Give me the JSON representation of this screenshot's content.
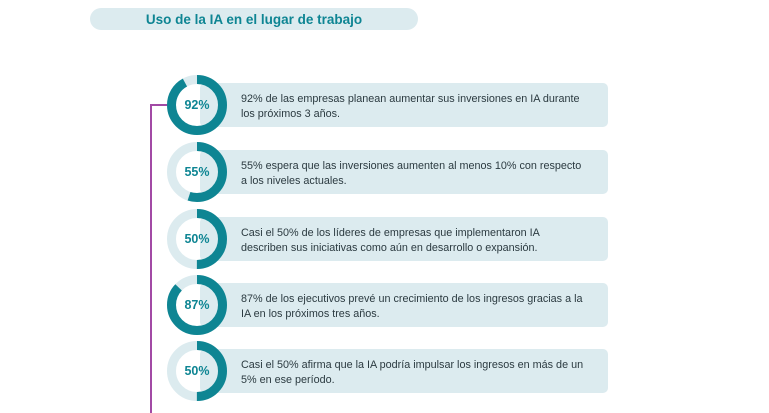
{
  "title": "Uso de la IA en el lugar de trabajo",
  "colors": {
    "accent": "#0e8593",
    "track": "#dcebef",
    "card": "#dcebef",
    "line": "#a24aa5"
  },
  "items": [
    {
      "label": "92%",
      "percent": 92,
      "text": "92% de las empresas planean aumentar sus inversiones en IA durante los próximos 3 años."
    },
    {
      "label": "55%",
      "percent": 55,
      "text": "55% espera que las inversiones aumenten al menos 10% con respecto a los niveles actuales."
    },
    {
      "label": "50%",
      "percent": 50,
      "text": "Casi el 50% de los líderes de empresas que implementaron IA describen sus iniciativas como aún en desarrollo o expansión."
    },
    {
      "label": "87%",
      "percent": 87,
      "text": "87% de los ejecutivos prevé un crecimiento de los ingresos gracias a la IA en los próximos tres años."
    },
    {
      "label": "50%",
      "percent": 50,
      "text": "Casi el 50% afirma que la IA podría impulsar los ingresos en más de un 5% en ese período."
    }
  ]
}
